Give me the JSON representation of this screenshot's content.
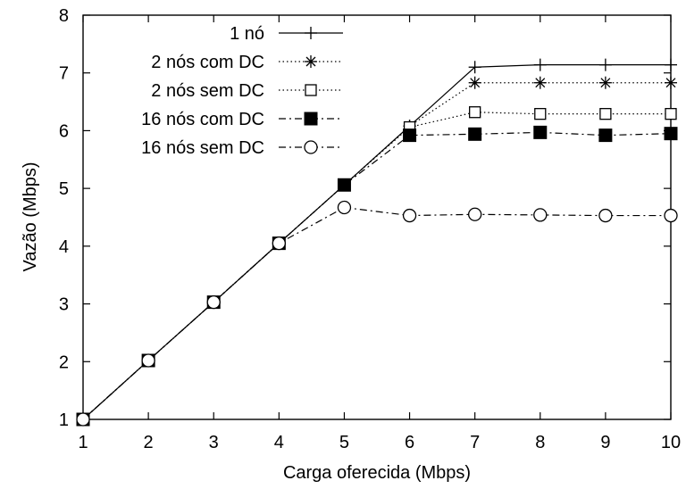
{
  "chart_data": {
    "type": "line",
    "xlabel": "Carga oferecida (Mbps)",
    "ylabel": "Vazão (Mbps)",
    "xlim": [
      1,
      10
    ],
    "ylim": [
      1,
      8
    ],
    "xticks": [
      "1",
      "2",
      "3",
      "4",
      "5",
      "6",
      "7",
      "8",
      "9",
      "10"
    ],
    "yticks": [
      "1",
      "2",
      "3",
      "4",
      "5",
      "6",
      "7",
      "8"
    ],
    "grid": false,
    "legend_position": "top-left",
    "x": [
      1,
      2,
      3,
      4,
      5,
      6,
      7,
      8,
      9,
      10
    ],
    "series": [
      {
        "name": "1 nó",
        "marker": "plus",
        "line": "solid",
        "values": [
          1.0,
          2.02,
          3.03,
          4.05,
          5.06,
          6.08,
          7.1,
          7.14,
          7.14,
          7.14
        ]
      },
      {
        "name": "2 nós com DC",
        "marker": "star",
        "line": "dotted",
        "values": [
          1.0,
          2.02,
          3.03,
          4.05,
          5.06,
          6.08,
          6.83,
          6.83,
          6.83,
          6.83
        ]
      },
      {
        "name": "2 nós sem DC",
        "marker": "open-square",
        "line": "dotted",
        "values": [
          1.0,
          2.02,
          3.03,
          4.05,
          5.06,
          6.06,
          6.32,
          6.29,
          6.29,
          6.29
        ]
      },
      {
        "name": "16 nós com DC",
        "marker": "filled-square",
        "line": "dash-dot",
        "values": [
          1.0,
          2.02,
          3.03,
          4.05,
          5.06,
          5.92,
          5.94,
          5.97,
          5.92,
          5.95
        ]
      },
      {
        "name": "16 nós sem DC",
        "marker": "open-circle",
        "line": "dash-dot",
        "values": [
          1.0,
          2.02,
          3.03,
          4.05,
          4.67,
          4.53,
          4.55,
          4.54,
          4.53,
          4.53
        ]
      }
    ]
  }
}
